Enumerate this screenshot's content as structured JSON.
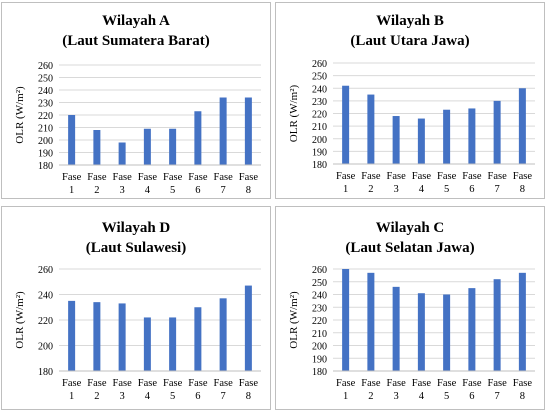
{
  "chart_data": [
    {
      "type": "bar",
      "title_line1": "Wilayah  A",
      "title_line2": "(Laut Sumatera Barat)",
      "ylabel": "OLR (W/m²)",
      "categories": [
        [
          "Fase",
          "1"
        ],
        [
          "Fase",
          "2"
        ],
        [
          "Fase",
          "3"
        ],
        [
          "Fase",
          "4"
        ],
        [
          "Fase",
          "5"
        ],
        [
          "Fase",
          "6"
        ],
        [
          "Fase",
          "7"
        ],
        [
          "Fase",
          "8"
        ]
      ],
      "values": [
        220,
        208,
        198,
        209,
        209,
        223,
        234,
        234
      ],
      "ylim": [
        180,
        260
      ],
      "yticks": [
        180,
        190,
        200,
        210,
        220,
        230,
        240,
        250,
        260
      ],
      "grid": true,
      "color": "#4472C4"
    },
    {
      "type": "bar",
      "title_line1": "Wilayah  B",
      "title_line2": "(Laut Utara Jawa)",
      "ylabel": "OLR (W/m²)",
      "categories": [
        [
          "Fase",
          "1"
        ],
        [
          "Fase",
          "2"
        ],
        [
          "Fase",
          "3"
        ],
        [
          "Fase",
          "4"
        ],
        [
          "Fase",
          "5"
        ],
        [
          "Fase",
          "6"
        ],
        [
          "Fase",
          "7"
        ],
        [
          "Fase",
          "8"
        ]
      ],
      "values": [
        242,
        235,
        218,
        216,
        223,
        224,
        230,
        240
      ],
      "ylim": [
        180,
        260
      ],
      "yticks": [
        180,
        190,
        200,
        210,
        220,
        230,
        240,
        250,
        260
      ],
      "grid": true,
      "color": "#4472C4"
    },
    {
      "type": "bar",
      "title_line1": "Wilayah  D",
      "title_line2": "(Laut Sulawesi)",
      "ylabel": "OLR (W/m²)",
      "categories": [
        [
          "Fase",
          "1"
        ],
        [
          "Fase",
          "2"
        ],
        [
          "Fase",
          "3"
        ],
        [
          "Fase",
          "4"
        ],
        [
          "Fase",
          "5"
        ],
        [
          "Fase",
          "6"
        ],
        [
          "Fase",
          "7"
        ],
        [
          "Fase",
          "8"
        ]
      ],
      "values": [
        235,
        234,
        233,
        222,
        222,
        230,
        237,
        247
      ],
      "ylim": [
        180,
        260
      ],
      "yticks": [
        180,
        200,
        220,
        240,
        260
      ],
      "grid": true,
      "color": "#4472C4"
    },
    {
      "type": "bar",
      "title_line1": "Wilayah  C",
      "title_line2": "(Laut Selatan Jawa)",
      "ylabel": "OLR (W/m²)",
      "categories": [
        [
          "Fase",
          "1"
        ],
        [
          "Fase",
          "2"
        ],
        [
          "Fase",
          "3"
        ],
        [
          "Fase",
          "4"
        ],
        [
          "Fase",
          "5"
        ],
        [
          "Fase",
          "6"
        ],
        [
          "Fase",
          "7"
        ],
        [
          "Fase",
          "8"
        ]
      ],
      "values": [
        260,
        257,
        246,
        241,
        240,
        245,
        252,
        257
      ],
      "ylim": [
        180,
        260
      ],
      "yticks": [
        180,
        190,
        200,
        210,
        220,
        230,
        240,
        250,
        260
      ],
      "grid": true,
      "color": "#4472C4"
    }
  ]
}
